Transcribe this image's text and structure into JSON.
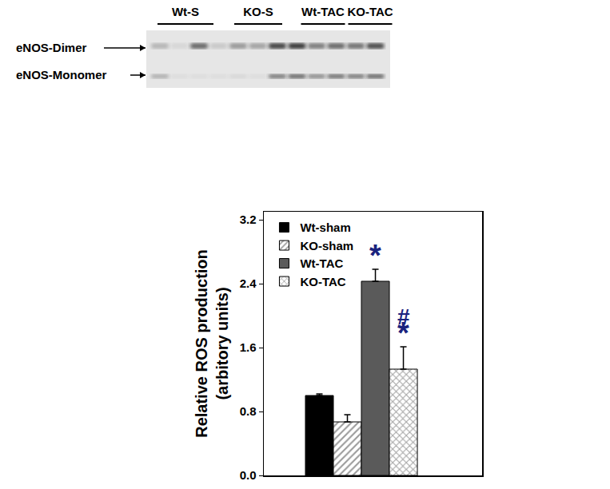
{
  "blot": {
    "lanes": [
      "Wt-S",
      "KO-S",
      "Wt-TAC",
      "KO-TAC"
    ],
    "bands": [
      "eNOS-Dimer",
      "eNOS-Monomer"
    ]
  },
  "chart_data": {
    "type": "bar",
    "categories": [
      null
    ],
    "series": [
      {
        "name": "Wt-sham",
        "color": "#000000",
        "values": [
          1.0
        ],
        "errors": [
          0.02
        ]
      },
      {
        "name": "KO-sham",
        "color": "#9a9a9a",
        "values": [
          0.67
        ],
        "errors": [
          0.09
        ]
      },
      {
        "name": "Wt-TAC",
        "color": "#5a5a5a",
        "values": [
          2.43
        ],
        "errors": [
          0.15
        ]
      },
      {
        "name": "KO-TAC",
        "color": "#a8a8a8",
        "values": [
          1.33
        ],
        "errors": [
          0.28
        ]
      }
    ],
    "ylabel": "Relative ROS production\n(arbitory units)",
    "ylim": [
      0,
      3.3
    ],
    "yticks": [
      {
        "value": 0,
        "label": "0.0"
      },
      {
        "value": 0.8,
        "label": "0.8"
      },
      {
        "value": 1.6,
        "label": "1.6"
      },
      {
        "value": 2.4,
        "label": "2.4"
      },
      {
        "value": 3.2,
        "label": "3.2"
      }
    ],
    "annotations": [
      {
        "text": "*",
        "series": "Wt-TAC"
      },
      {
        "text": "*",
        "series": "KO-TAC"
      },
      {
        "text": "#",
        "series": "KO-TAC"
      }
    ],
    "legend": "top-left",
    "grid": false,
    "tick_labels": "y"
  }
}
